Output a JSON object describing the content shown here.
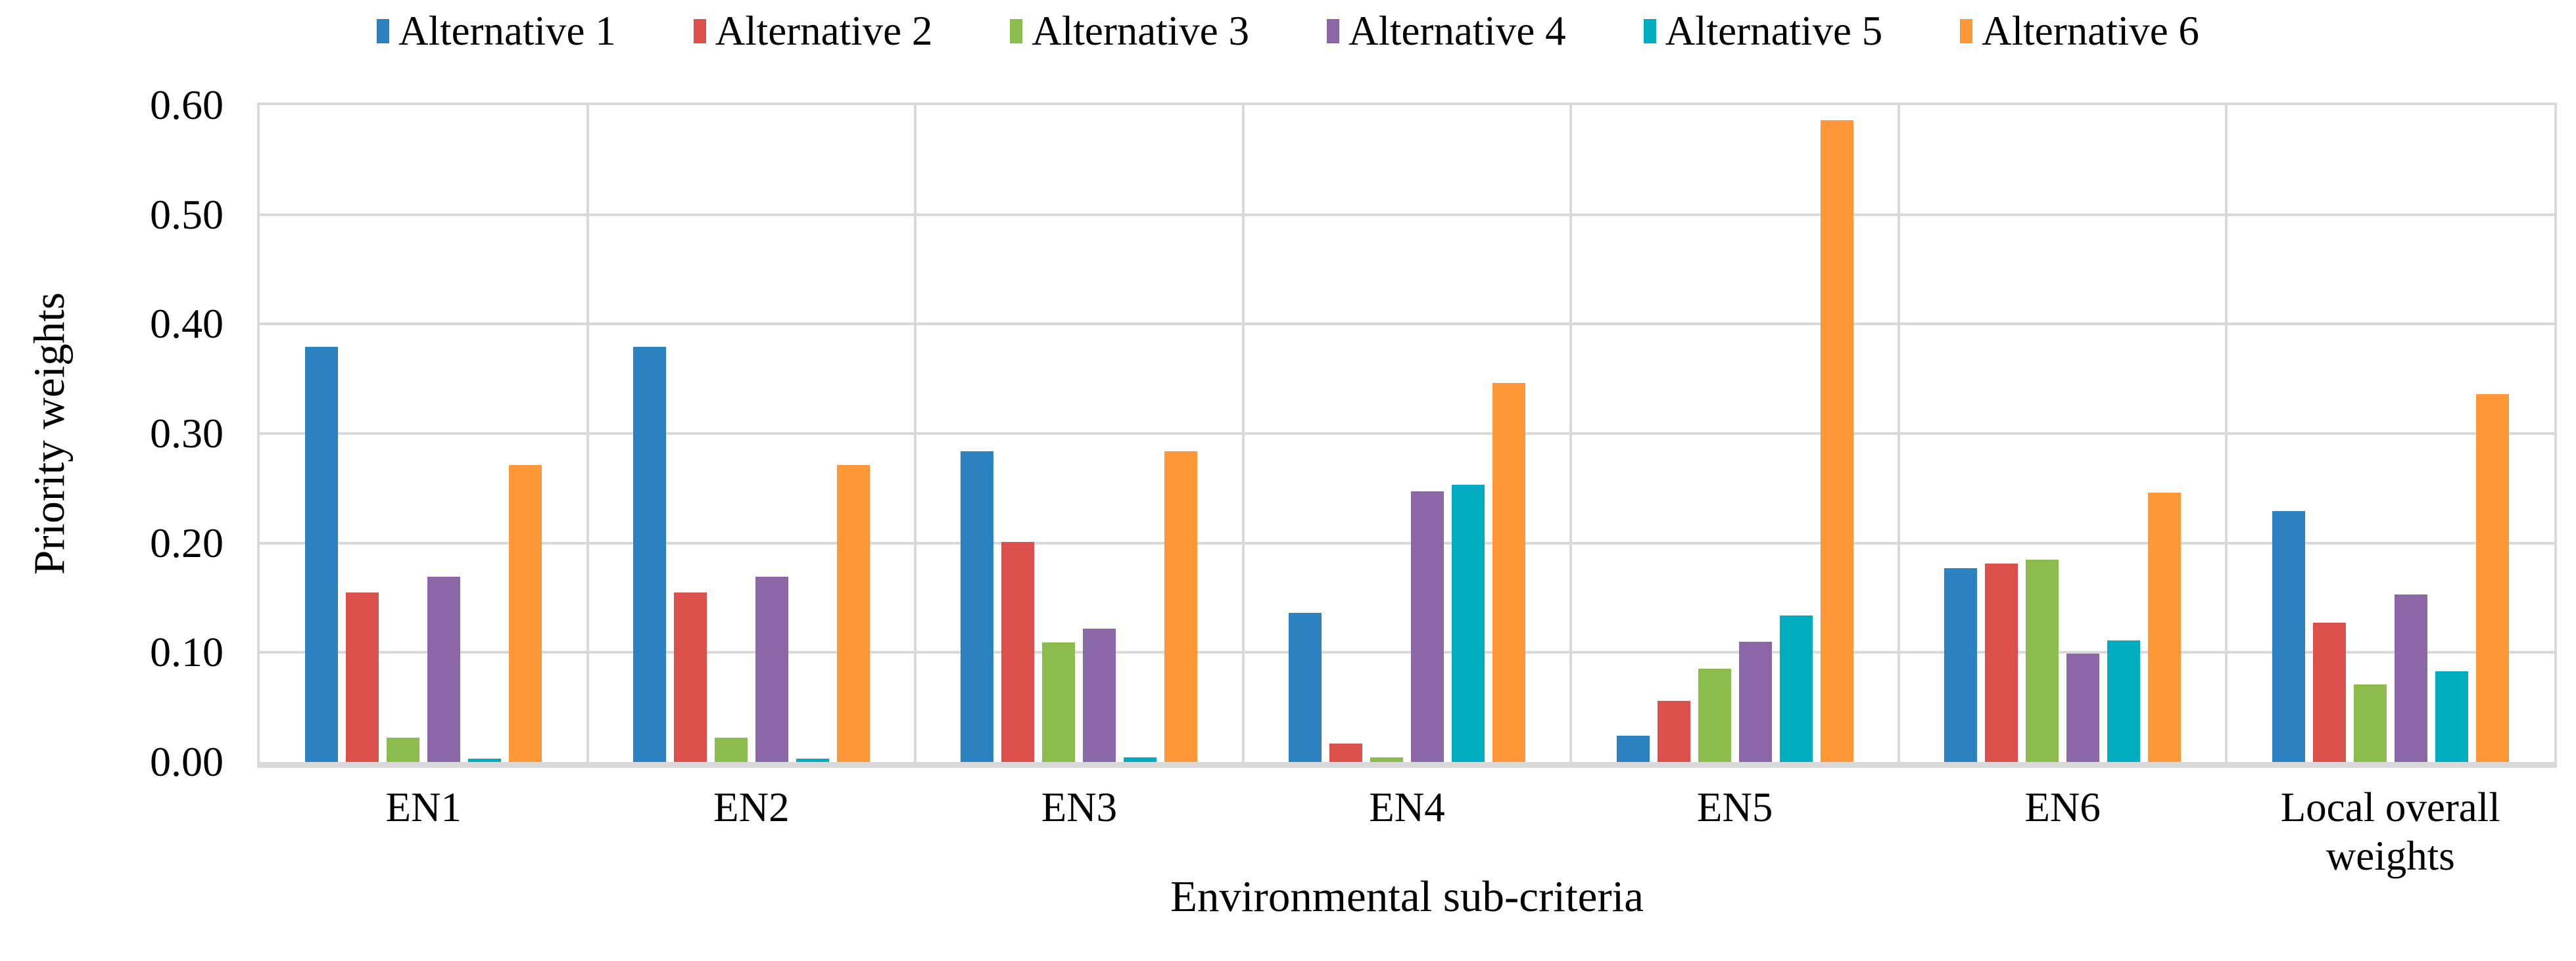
{
  "figure": {
    "y_axis_title": "Priority weights",
    "x_axis_title": "Environmental sub-criteria"
  },
  "chart_data": {
    "type": "bar",
    "title": "",
    "xlabel": "Environmental sub-criteria",
    "ylabel": "Priority weights",
    "ylim": [
      0,
      0.6
    ],
    "ytick_step": 0.1,
    "ytick_labels": [
      "0.00",
      "0.10",
      "0.20",
      "0.30",
      "0.40",
      "0.50",
      "0.60"
    ],
    "grid": "horizontal-gridlines-and-vertical-category-separators",
    "gridline_color": "#d9d9d9",
    "legend_position": "top",
    "categories": [
      "EN1",
      "EN2",
      "EN3",
      "EN4",
      "EN5",
      "EN6",
      "Local overall weights"
    ],
    "series": [
      {
        "name": "Alternative 1",
        "color": "#2c82c0",
        "values": [
          0.379,
          0.379,
          0.284,
          0.136,
          0.024,
          0.177,
          0.229
        ]
      },
      {
        "name": "Alternative 2",
        "color": "#db504b",
        "values": [
          0.155,
          0.155,
          0.201,
          0.017,
          0.056,
          0.181,
          0.127
        ]
      },
      {
        "name": "Alternative 3",
        "color": "#8cbc4d",
        "values": [
          0.022,
          0.022,
          0.109,
          0.004,
          0.085,
          0.185,
          0.071
        ]
      },
      {
        "name": "Alternative 4",
        "color": "#8b67a7",
        "values": [
          0.169,
          0.169,
          0.122,
          0.247,
          0.11,
          0.099,
          0.153
        ]
      },
      {
        "name": "Alternative 5",
        "color": "#00acc0",
        "values": [
          0.003,
          0.003,
          0.004,
          0.253,
          0.134,
          0.111,
          0.083
        ]
      },
      {
        "name": "Alternative 6",
        "color": "#fd9738",
        "values": [
          0.271,
          0.271,
          0.284,
          0.346,
          0.586,
          0.246,
          0.336
        ]
      }
    ]
  }
}
